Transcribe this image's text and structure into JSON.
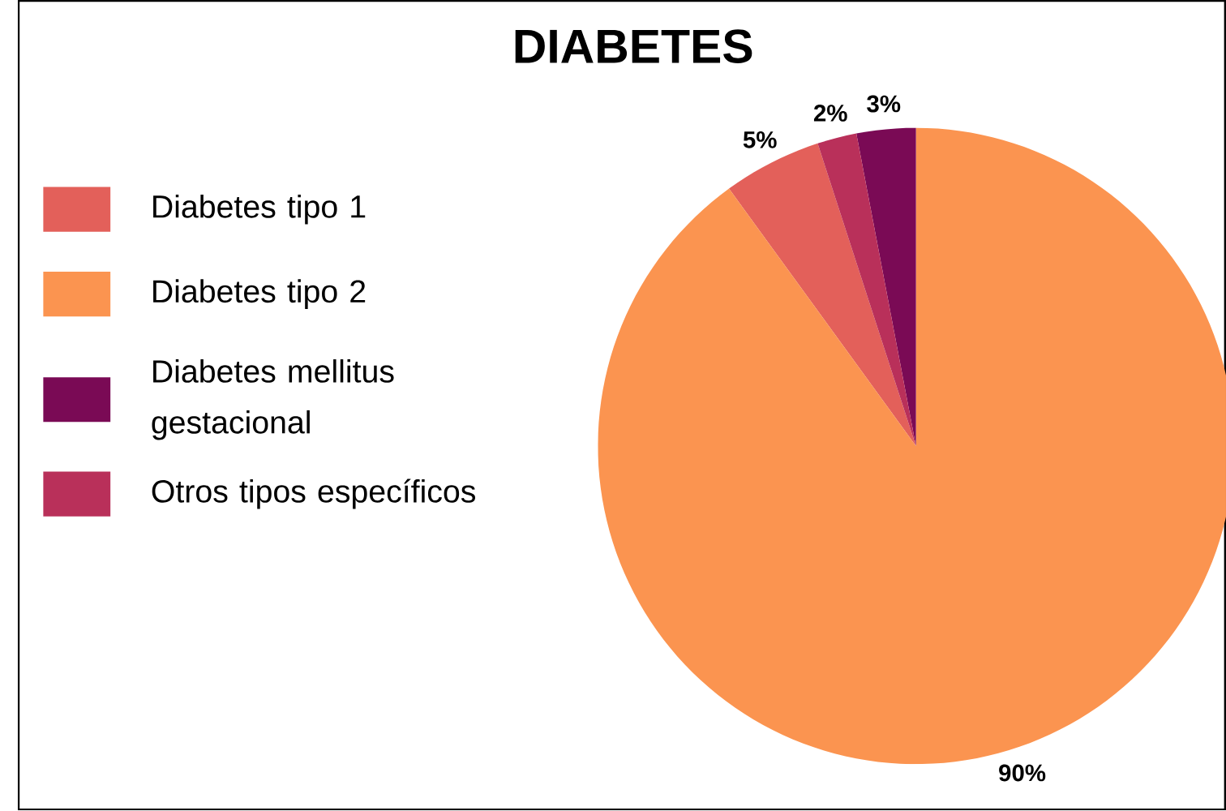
{
  "chart_data": {
    "type": "pie",
    "title": "DIABETES",
    "categories": [
      "Diabetes tipo 1",
      "Diabetes tipo 2",
      "Diabetes mellitus gestacional",
      "Otros tipos específicos"
    ],
    "values": [
      5,
      90,
      3,
      2
    ],
    "colors": [
      "#e3605a",
      "#fb9450",
      "#7a0a55",
      "#b9305a"
    ],
    "value_labels": [
      "5%",
      "90%",
      "3%",
      "2%"
    ],
    "legend": "left"
  }
}
